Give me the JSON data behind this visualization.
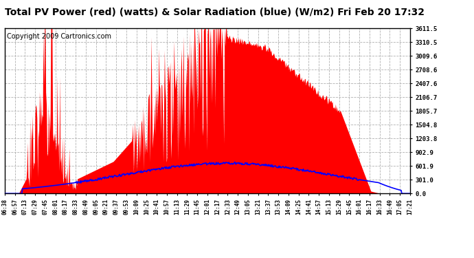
{
  "title": "Total PV Power (red) (watts) & Solar Radiation (blue) (W/m2) Fri Feb 20 17:32",
  "copyright_text": "Copyright 2009 Cartronics.com",
  "yticks": [
    0.0,
    301.0,
    601.9,
    902.9,
    1203.8,
    1504.8,
    1805.7,
    2106.7,
    2407.6,
    2708.6,
    3009.6,
    3310.5,
    3611.5
  ],
  "xtick_labels": [
    "06:38",
    "06:57",
    "07:13",
    "07:29",
    "07:45",
    "08:01",
    "08:17",
    "08:33",
    "08:49",
    "09:05",
    "09:21",
    "09:37",
    "09:53",
    "10:09",
    "10:25",
    "10:41",
    "10:57",
    "11:13",
    "11:29",
    "11:45",
    "12:01",
    "12:17",
    "12:33",
    "12:49",
    "13:05",
    "13:21",
    "13:37",
    "13:53",
    "14:09",
    "14:25",
    "14:41",
    "14:57",
    "15:13",
    "15:29",
    "15:45",
    "16:01",
    "16:17",
    "16:33",
    "16:49",
    "17:05",
    "17:21"
  ],
  "bg_color": "#ffffff",
  "plot_bg": "#ffffff",
  "red_fill_color": "#ff0000",
  "blue_line_color": "#0000ff",
  "grid_color": "#b0b0b0",
  "title_fontsize": 10,
  "copyright_fontsize": 7,
  "ymax": 3611.5,
  "ymin": 0.0
}
